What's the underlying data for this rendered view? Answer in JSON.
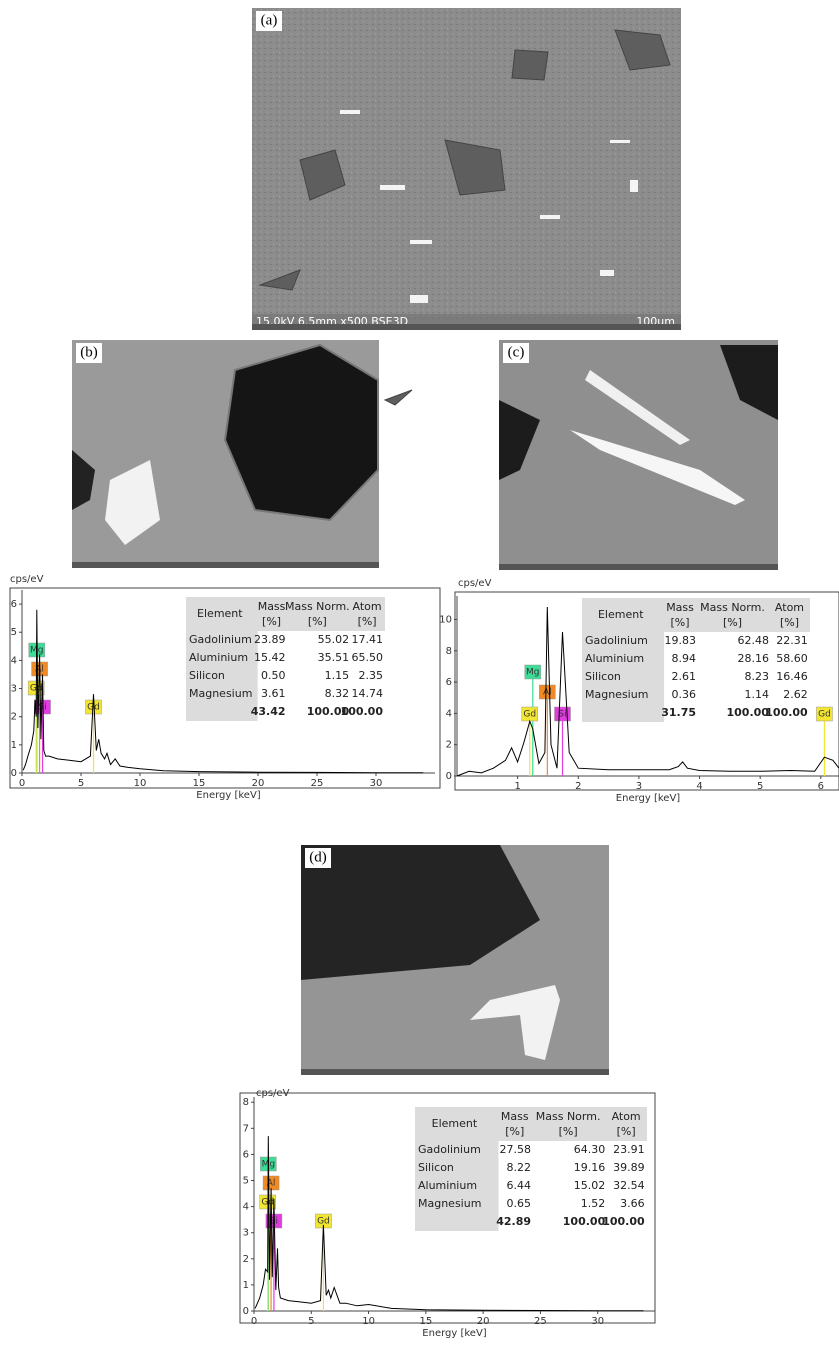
{
  "images": [
    {
      "label": "(a)",
      "caption": "15.0kV 6.5mm x500 BSE3D",
      "scale_bar": "100um"
    },
    {
      "label": "(b)"
    },
    {
      "label": "(c)"
    },
    {
      "label": "(d)"
    }
  ],
  "chart_data": [
    {
      "type": "line",
      "y_label": "cps/eV",
      "x_label": "Energy [keV]",
      "color": "#000000",
      "x": [
        0.1,
        0.3,
        0.5,
        0.8,
        1.0,
        1.1,
        1.2,
        1.25,
        1.35,
        1.49,
        1.6,
        1.74,
        1.85,
        2.0,
        2.3,
        3,
        4,
        5,
        5.8,
        6.06,
        6.3,
        6.5,
        6.7,
        7.0,
        7.2,
        7.5,
        7.9,
        8.3,
        9,
        10,
        12,
        15,
        20,
        25,
        30,
        34
      ],
      "values": [
        0.1,
        0.3,
        0.6,
        1.0,
        1.5,
        2.6,
        2.0,
        5.8,
        1.6,
        4.2,
        1.2,
        3.5,
        0.8,
        0.6,
        0.6,
        0.5,
        0.45,
        0.4,
        0.6,
        2.8,
        0.8,
        1.2,
        0.7,
        0.5,
        0.7,
        0.3,
        0.5,
        0.25,
        0.2,
        0.15,
        0.08,
        0.05,
        0.03,
        0.02,
        0.01,
        0.01
      ],
      "xlim": [
        0,
        35
      ],
      "ylim": [
        0,
        6.5
      ],
      "xticks": [
        0,
        5,
        10,
        15,
        20,
        25,
        30
      ],
      "yticks": [
        0,
        1,
        2,
        3,
        4,
        5,
        6
      ],
      "peaks": [
        {
          "label": "Mg",
          "x": 1.25,
          "color": "#3ddc97"
        },
        {
          "label": "Al",
          "x": 1.49,
          "color": "#f08a24"
        },
        {
          "label": "Gd",
          "x": 1.2,
          "color": "#f2e632"
        },
        {
          "label": "Si",
          "x": 1.74,
          "color": "#e03ce0"
        },
        {
          "label": "Gd",
          "x": 6.06,
          "color": "#f2e632"
        }
      ],
      "table": {
        "columns": [
          "Element",
          "Mass",
          "Mass Norm.",
          "Atom"
        ],
        "units": [
          "[%]",
          "[%]",
          "[%]"
        ],
        "rows": [
          [
            "Gadolinium",
            "23.89",
            "55.02",
            "17.41"
          ],
          [
            "Aluminium",
            "15.42",
            "35.51",
            "65.50"
          ],
          [
            "Silicon",
            "0.50",
            "1.15",
            "2.35"
          ],
          [
            "Magnesium",
            "3.61",
            "8.32",
            "14.74"
          ]
        ],
        "total": [
          "43.42",
          "100.00",
          "100.00"
        ]
      }
    },
    {
      "type": "line",
      "y_label": "cps/eV",
      "x_label": "Energy [keV]",
      "color": "#000000",
      "x": [
        0,
        0.2,
        0.4,
        0.6,
        0.8,
        0.9,
        1.0,
        1.1,
        1.2,
        1.25,
        1.35,
        1.45,
        1.49,
        1.55,
        1.65,
        1.74,
        1.85,
        2.0,
        2.5,
        3.0,
        3.5,
        3.65,
        3.72,
        3.8,
        4.0,
        4.5,
        5,
        5.5,
        5.9,
        6.06,
        6.2,
        6.3
      ],
      "values": [
        0,
        0.3,
        0.2,
        0.5,
        1.0,
        1.8,
        0.9,
        2.1,
        3.5,
        3.0,
        0.8,
        1.5,
        10.8,
        2.0,
        0.5,
        9.2,
        1.5,
        0.5,
        0.4,
        0.4,
        0.4,
        0.6,
        0.9,
        0.5,
        0.35,
        0.3,
        0.3,
        0.35,
        0.3,
        1.2,
        1.0,
        0.5
      ],
      "xlim": [
        0,
        6.3
      ],
      "ylim": [
        0,
        11.5
      ],
      "xticks": [
        1,
        2,
        3,
        4,
        5,
        6
      ],
      "yticks": [
        0,
        2,
        4,
        6,
        8,
        10
      ],
      "peaks": [
        {
          "label": "Mg",
          "x": 1.25,
          "color": "#3ddc97"
        },
        {
          "label": "Al",
          "x": 1.49,
          "color": "#f08a24"
        },
        {
          "label": "Gd",
          "x": 1.2,
          "color": "#f2e632"
        },
        {
          "label": "Si",
          "x": 1.74,
          "color": "#e03ce0"
        },
        {
          "label": "Gd",
          "x": 6.06,
          "color": "#f2e632"
        }
      ],
      "table": {
        "columns": [
          "Element",
          "Mass",
          "Mass Norm.",
          "Atom"
        ],
        "units": [
          "[%]",
          "[%]",
          "[%]"
        ],
        "rows": [
          [
            "Gadolinium",
            "19.83",
            "62.48",
            "22.31"
          ],
          [
            "Aluminium",
            "8.94",
            "28.16",
            "58.60"
          ],
          [
            "Silicon",
            "2.61",
            "8.23",
            "16.46"
          ],
          [
            "Magnesium",
            "0.36",
            "1.14",
            "2.62"
          ]
        ],
        "total": [
          "31.75",
          "100.00",
          "100.00"
        ]
      }
    },
    {
      "type": "line",
      "y_label": "cps/eV",
      "x_label": "Energy [keV]",
      "color": "#000000",
      "x": [
        0.1,
        0.5,
        0.8,
        1.0,
        1.2,
        1.25,
        1.35,
        1.49,
        1.6,
        1.74,
        1.9,
        2.05,
        2.15,
        2.3,
        3,
        4,
        5,
        5.8,
        6.06,
        6.3,
        6.5,
        6.7,
        7.0,
        7.5,
        8,
        9,
        10,
        12,
        15,
        20,
        25,
        30,
        34
      ],
      "values": [
        0.1,
        0.5,
        1.0,
        1.6,
        1.5,
        6.7,
        1.2,
        4.7,
        1.3,
        4.3,
        0.8,
        2.4,
        0.9,
        0.5,
        0.4,
        0.35,
        0.3,
        0.4,
        3.3,
        0.6,
        0.8,
        0.5,
        0.9,
        0.3,
        0.3,
        0.2,
        0.25,
        0.1,
        0.05,
        0.03,
        0.02,
        0.01,
        0.01
      ],
      "xlim": [
        0,
        35
      ],
      "ylim": [
        0,
        8.2
      ],
      "xticks": [
        0,
        5,
        10,
        15,
        20,
        25,
        30
      ],
      "yticks": [
        0,
        1,
        2,
        3,
        4,
        5,
        6,
        7,
        8
      ],
      "peaks": [
        {
          "label": "Mg",
          "x": 1.25,
          "color": "#3ddc97"
        },
        {
          "label": "Al",
          "x": 1.49,
          "color": "#f08a24"
        },
        {
          "label": "Gd",
          "x": 1.2,
          "color": "#f2e632"
        },
        {
          "label": "Si",
          "x": 1.74,
          "color": "#e03ce0"
        },
        {
          "label": "Gd",
          "x": 6.06,
          "color": "#f2e632"
        }
      ],
      "table": {
        "columns": [
          "Element",
          "Mass",
          "Mass Norm.",
          "Atom"
        ],
        "units": [
          "[%]",
          "[%]",
          "[%]"
        ],
        "rows": [
          [
            "Gadolinium",
            "27.58",
            "64.30",
            "23.91"
          ],
          [
            "Silicon",
            "8.22",
            "19.16",
            "39.89"
          ],
          [
            "Aluminium",
            "6.44",
            "15.02",
            "32.54"
          ],
          [
            "Magnesium",
            "0.65",
            "1.52",
            "3.66"
          ]
        ],
        "total": [
          "42.89",
          "100.00",
          "100.00"
        ]
      }
    }
  ]
}
